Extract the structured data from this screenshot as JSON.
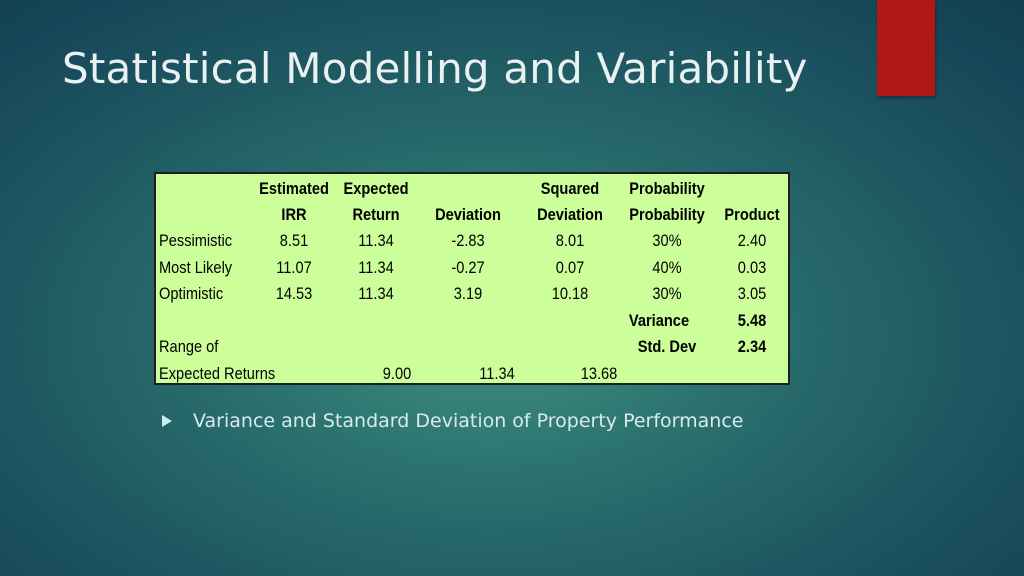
{
  "slide": {
    "title": "Statistical Modelling and Variability",
    "bullet": "Variance and Standard Deviation of Property Performance"
  },
  "table": {
    "header_row1": [
      "Estimated",
      "Expected",
      "Squared",
      "Probability"
    ],
    "header_row2": [
      "IRR",
      "Return",
      "Deviation",
      "Deviation",
      "Probability",
      "Product"
    ],
    "rows": [
      {
        "label": "Pessimistic",
        "irr": "8.51",
        "expected": "11.34",
        "deviation": "-2.83",
        "squared": "8.01",
        "probability": "30%",
        "product": "2.40"
      },
      {
        "label": "Most Likely",
        "irr": "11.07",
        "expected": "11.34",
        "deviation": "-0.27",
        "squared": "0.07",
        "probability": "40%",
        "product": "0.03"
      },
      {
        "label": "Optimistic",
        "irr": "14.53",
        "expected": "11.34",
        "deviation": "3.19",
        "squared": "10.18",
        "probability": "30%",
        "product": "3.05"
      }
    ],
    "variance_label": "Variance",
    "variance_value": "5.48",
    "range_label": "Range of",
    "stddev_label": "Std. Dev",
    "stddev_value": "2.34",
    "expected_returns_label": "Expected Returns",
    "range_values": [
      "9.00",
      "11.34",
      "13.68"
    ]
  }
}
